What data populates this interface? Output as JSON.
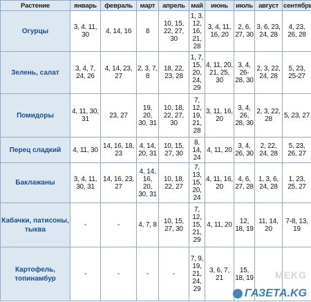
{
  "table": {
    "headers": [
      "Растение",
      "январь",
      "февраль",
      "март",
      "апрель",
      "май",
      "июнь",
      "июль",
      "август",
      "сентябрь"
    ],
    "rows": [
      {
        "plant": "Огурцы",
        "cells": [
          "3, 4, 11, 30",
          "4, 14, 16",
          "8",
          "10, 15, 22, 27, 30",
          "1, 3, 12, 16, 21, 28",
          "3, 4, 11, 16, 20",
          "2, 6, 27, 30",
          "3, 6, 23, 24, 28",
          "4, 23, 26, 28"
        ]
      },
      {
        "plant": "Зелень, салат",
        "cells": [
          "3, 4, 7, 24, 26",
          "4, 14, 23, 27",
          "2, 3, 7, 8",
          "18, 22, 23, 28",
          "1, 7, 15, 20, 24, 29",
          "4, 11, 20, 21, 25, 30",
          "3, 4, 26-28, 30",
          "2, 3, 22, 24, 28",
          "5, 23, 25-27"
        ]
      },
      {
        "plant": "Помидоры",
        "cells": [
          "4, 11, 30, 31",
          "23, 27",
          "19, 20, 30, 31",
          "10, 18, 22, 27, 30",
          "7, 12, 19, 21, 28",
          "3, 11, 16, 20",
          "3, 4, 26, 28, 30",
          "2, 3, 22, 28",
          "5, 23, 27"
        ]
      },
      {
        "plant": "Перец сладкий",
        "cells": [
          "4, 11, 30",
          "14, 16, 18, 23",
          "4, 14, 20, 31",
          "10, 15, 27, 30",
          "8, 14, 24",
          "4, 11, 20",
          "3, 4, 26, 30",
          "2, 22, 24, 28",
          "5, 23, 26, 27"
        ]
      },
      {
        "plant": "Баклажаны",
        "cells": [
          "3, 4, 11, 30, 31",
          "14, 16, 23, 27",
          "4, 14, 16, 20, 30, 31",
          "10, 18, 22, 27",
          "7, 13, 15, 20, 24",
          "4, 11, 16, 20",
          "4, 6, 27, 28",
          "1, 3, 6, 24, 28",
          "1, 23, 25, 27"
        ]
      },
      {
        "plant": "Кабачки, патисоны, тыква",
        "cells": [
          "-",
          "-",
          "4, 7, 8",
          "10, 15, 27, 30",
          "7, 12, 15, 21, 29",
          "4, 11, 20",
          "12, 18, 19",
          "11, 14, 20",
          "7-8, 13, 19"
        ]
      },
      {
        "plant": "Картофель, топинамбур",
        "cells": [
          "-",
          "-",
          "-",
          "-",
          "7, 9, 19, 21, 24, 29",
          "3, 6, 7, 21",
          "15, 18, 19",
          "",
          ""
        ]
      }
    ]
  },
  "watermark": {
    "top": "MEKG",
    "brand": "ГАЗЕТА.KG"
  }
}
